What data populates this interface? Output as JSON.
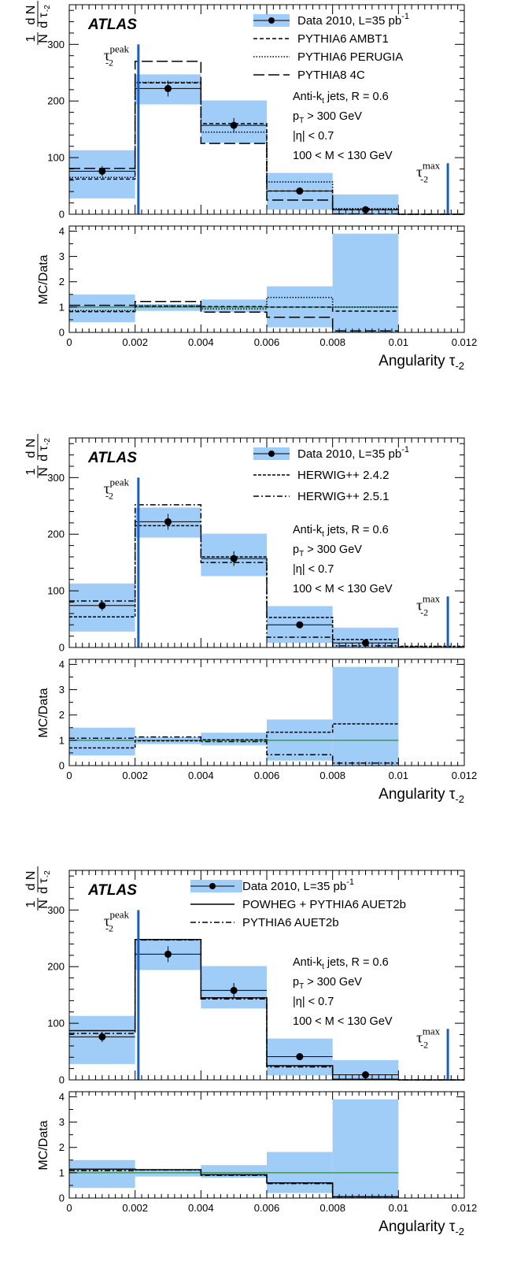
{
  "style": {
    "band_color": "#9fcdf7",
    "ratio_line_color": "#2e8b2e",
    "marker_color": "#1c5fb4"
  },
  "chart_data": [
    {
      "type": "bar",
      "panel": "top",
      "atlas_label": "ATLAS",
      "y_label": "1/N dN/dτ-2",
      "ratio_y_label": "MC/Data",
      "x_label": "Angularity τ-2",
      "x_edges": [
        0,
        0.002,
        0.004,
        0.006,
        0.008,
        0.01,
        0.012
      ],
      "xlim": [
        0,
        0.012
      ],
      "x_ticks": [
        "0",
        "0.002",
        "0.004",
        "0.006",
        "0.008",
        "0.01",
        "0.012"
      ],
      "ylim": [
        0,
        370
      ],
      "y_ticks": [
        0,
        100,
        200,
        300
      ],
      "ratio_ylim": [
        0,
        4.2
      ],
      "ratio_ticks": [
        0,
        1,
        2,
        3,
        4
      ],
      "data": {
        "name": "Data 2010, L=35 pb",
        "name_sup": "-1",
        "x": [
          0.001,
          0.003,
          0.005,
          0.007,
          0.009
        ],
        "values": [
          76,
          222,
          157,
          41,
          8
        ],
        "err": [
          9,
          14,
          13,
          5,
          2
        ],
        "band_low": [
          28,
          194,
          126,
          8,
          0
        ],
        "band_high": [
          113,
          247,
          201,
          73,
          35
        ],
        "ratio_band_low": [
          0.4,
          0.85,
          0.8,
          0.2,
          0.0
        ],
        "ratio_band_high": [
          1.5,
          1.12,
          1.3,
          1.82,
          3.9
        ]
      },
      "series": [
        {
          "name": "PYTHIA6 AMBT1",
          "dash": "5,3",
          "values": [
            62,
            232,
            160,
            41,
            8,
            0
          ],
          "ratio": [
            0.82,
            1.04,
            1.02,
            1.0,
            0.84
          ]
        },
        {
          "name": "PYTHIA6 PERUGIA",
          "dash": "1.5,2",
          "values": [
            65,
            233,
            145,
            57,
            10,
            0
          ],
          "ratio": [
            0.86,
            1.05,
            0.93,
            1.38,
            1.0
          ]
        },
        {
          "name": "PYTHIA8 4C",
          "dash": "14,5",
          "values": [
            81,
            270,
            125,
            25,
            0.5,
            0
          ],
          "ratio": [
            1.07,
            1.22,
            0.8,
            0.6,
            0.06
          ]
        }
      ],
      "peak_label": "τ",
      "peak_sub": "-2",
      "peak_sup": "peak",
      "peak_x": 0.0021,
      "max_label": "τ",
      "max_sub": "-2",
      "max_sup": "max",
      "max_x": 0.0115,
      "annotations": [
        "Anti-k",
        "t",
        " jets, R = 0.6",
        "p",
        "T",
        " > 300 GeV",
        "|η| < 0.7",
        "100 < M < 130 GeV"
      ]
    },
    {
      "type": "bar",
      "panel": "middle",
      "atlas_label": "ATLAS",
      "y_label": "1/N dN/dτ-2",
      "ratio_y_label": "MC/Data",
      "x_label": "Angularity τ-2",
      "x_edges": [
        0,
        0.002,
        0.004,
        0.006,
        0.008,
        0.01,
        0.012
      ],
      "xlim": [
        0,
        0.012
      ],
      "x_ticks": [
        "0",
        "0.002",
        "0.004",
        "0.006",
        "0.008",
        "0.01",
        "0.012"
      ],
      "ylim": [
        0,
        370
      ],
      "y_ticks": [
        0,
        100,
        200,
        300
      ],
      "ratio_ylim": [
        0,
        4.2
      ],
      "ratio_ticks": [
        0,
        1,
        2,
        3,
        4
      ],
      "data": {
        "name": "Data 2010, L=35 pb",
        "name_sup": "-1",
        "x": [
          0.001,
          0.003,
          0.005,
          0.007,
          0.009
        ],
        "values": [
          74,
          222,
          157,
          40,
          8
        ],
        "err": [
          9,
          14,
          13,
          5,
          2
        ],
        "band_low": [
          28,
          194,
          126,
          8,
          0
        ],
        "band_high": [
          113,
          247,
          201,
          73,
          35
        ],
        "ratio_band_low": [
          0.4,
          0.85,
          0.8,
          0.2,
          0.0
        ],
        "ratio_band_high": [
          1.5,
          1.12,
          1.3,
          1.82,
          3.9
        ]
      },
      "series": [
        {
          "name": "HERWIG++ 2.4.2",
          "dash": "4,2",
          "values": [
            54,
            215,
            160,
            53,
            14,
            2
          ],
          "ratio": [
            0.7,
            0.98,
            1.02,
            1.32,
            1.65
          ]
        },
        {
          "name": "HERWIG++ 2.5.1",
          "dash": "7,3,2,3",
          "values": [
            82,
            252,
            150,
            18,
            3,
            1
          ],
          "ratio": [
            1.08,
            1.13,
            0.95,
            0.43,
            0.1
          ]
        }
      ],
      "peak_label": "τ",
      "peak_sub": "-2",
      "peak_sup": "peak",
      "peak_x": 0.0021,
      "max_label": "τ",
      "max_sub": "-2",
      "max_sup": "max",
      "max_x": 0.0115,
      "annotations": [
        "Anti-k",
        "t",
        " jets, R = 0.6",
        "p",
        "T",
        " > 300 GeV",
        "|η| < 0.7",
        "100 < M < 130 GeV"
      ]
    },
    {
      "type": "bar",
      "panel": "bottom",
      "atlas_label": "ATLAS",
      "y_label": "1/N dN/dτ-2",
      "ratio_y_label": "MC/Data",
      "x_label": "Angularity τ-2",
      "x_edges": [
        0,
        0.002,
        0.004,
        0.006,
        0.008,
        0.01,
        0.012
      ],
      "xlim": [
        0,
        0.012
      ],
      "x_ticks": [
        "0",
        "0.002",
        "0.004",
        "0.006",
        "0.008",
        "0.01",
        "0.012"
      ],
      "ylim": [
        0,
        370
      ],
      "y_ticks": [
        0,
        100,
        200,
        300
      ],
      "ratio_ylim": [
        0,
        4.2
      ],
      "ratio_ticks": [
        0,
        1,
        2,
        3,
        4
      ],
      "data": {
        "name": "Data 2010, L=35 pb",
        "name_sup": "-1",
        "x": [
          0.001,
          0.003,
          0.005,
          0.007,
          0.009
        ],
        "values": [
          76,
          222,
          158,
          41,
          9
        ],
        "err": [
          9,
          14,
          13,
          5,
          2
        ],
        "band_low": [
          28,
          194,
          126,
          8,
          0
        ],
        "band_high": [
          113,
          247,
          201,
          73,
          35
        ],
        "ratio_band_low": [
          0.4,
          0.85,
          0.8,
          0.2,
          0.0
        ],
        "ratio_band_high": [
          1.5,
          1.12,
          1.3,
          1.82,
          3.9
        ]
      },
      "series": [
        {
          "name": "POWHEG + PYTHIA6 AUET2b",
          "dash": "",
          "values": [
            87,
            248,
            145,
            25,
            1,
            0
          ],
          "ratio": [
            1.14,
            1.12,
            0.92,
            0.6,
            0.05
          ]
        },
        {
          "name": "PYTHIA6 AUET2b",
          "dash": "7,3,2,3",
          "values": [
            82,
            247,
            143,
            23,
            1,
            0
          ],
          "ratio": [
            1.08,
            1.11,
            0.9,
            0.57,
            0.05
          ]
        }
      ],
      "peak_label": "τ",
      "peak_sub": "-2",
      "peak_sup": "peak",
      "peak_x": 0.0021,
      "max_label": "τ",
      "max_sub": "-2",
      "max_sup": "max",
      "max_x": 0.0115,
      "annotations": [
        "Anti-k",
        "t",
        " jets, R = 0.6",
        "p",
        "T",
        " > 300 GeV",
        "|η| < 0.7",
        "100 < M < 130 GeV"
      ]
    }
  ]
}
